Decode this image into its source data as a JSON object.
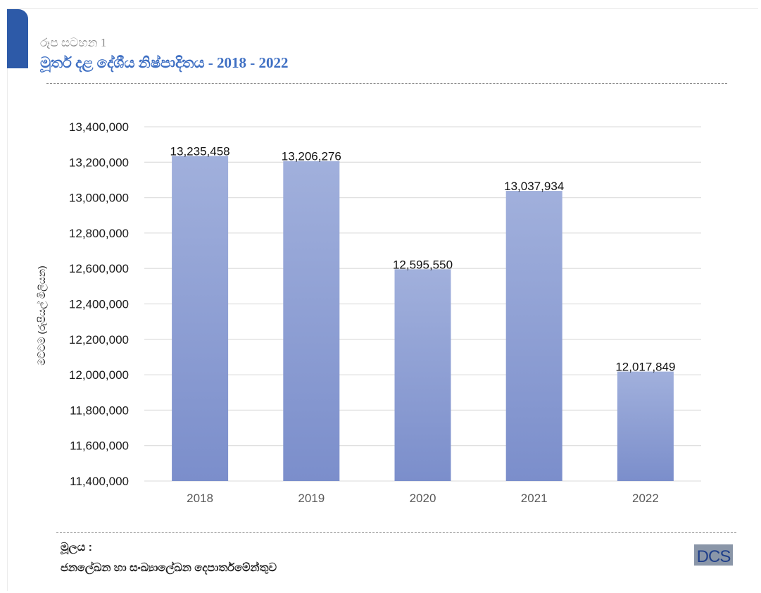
{
  "figure": {
    "label": "රූප සටහන 1",
    "title": "මූර්ත දළ දේශීය නිෂ්පාදිතය -  2018 - 2022"
  },
  "source": {
    "label": "මූලය :",
    "text": "ජනලේඛන හා සංඛ්‍යාලේඛන  දෙපාර්තමේන්තුව"
  },
  "logo": {
    "text": "DCS"
  },
  "chart_data": {
    "type": "bar",
    "categories": [
      "2018",
      "2019",
      "2020",
      "2021",
      "2022"
    ],
    "values": [
      13235458,
      13206276,
      12595550,
      13037934,
      12017849
    ],
    "value_labels": [
      "13,235,458",
      "13,206,276",
      "12,595,550",
      "13,037,934",
      "12,017,849"
    ],
    "ylabel": "මට්ටම (රුපියල් මිලියන)",
    "ylim": [
      11400000,
      13400000
    ],
    "yticks": [
      11400000,
      11600000,
      11800000,
      12000000,
      12200000,
      12400000,
      12600000,
      12800000,
      13000000,
      13200000,
      13400000
    ],
    "ytick_labels": [
      "11,400,000",
      "11,600,000",
      "11,800,000",
      "12,000,000",
      "12,200,000",
      "12,400,000",
      "12,600,000",
      "12,800,000",
      "13,000,000",
      "13,200,000",
      "13,400,000"
    ],
    "grid": true,
    "legend": "none",
    "colors": {
      "bar_top": "#a1b0dc",
      "bar_bottom": "#7b8ecb",
      "grid": "#e0e0e0",
      "tick_text": "#1a1a1a",
      "category_text": "#595959"
    }
  }
}
